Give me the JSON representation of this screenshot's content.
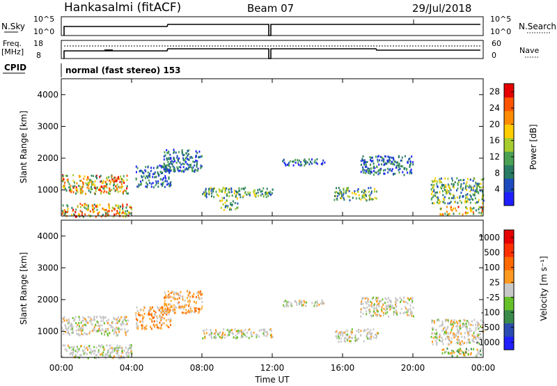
{
  "header": {
    "station": "Hankasalmi (fitACF)",
    "beam": "Beam 07",
    "date": "29/Jul/2018"
  },
  "top_panels": {
    "nsky_label": "N.Sky",
    "nsky_ticks": [
      "10^5",
      "10^0"
    ],
    "nsearch_label": "N.Search",
    "nsearch_ticks": [
      "10^5",
      "10^0"
    ],
    "freq_label": "Freq.",
    "freq_unit": "[MHz]",
    "freq_ticks": [
      "18",
      "8"
    ],
    "nave_label": "Nave",
    "nave_ticks": [
      "60",
      "0"
    ],
    "cpid_label": "CPID",
    "cpid_value": "normal (fast stereo) 153"
  },
  "chart_data": [
    {
      "type": "heatmap",
      "ylabel": "Slant Range [km]",
      "yticks": [
        "4000",
        "3000",
        "2000",
        "1000"
      ],
      "ylim": [
        180,
        4500
      ],
      "xlim": [
        0,
        24
      ],
      "colorbar_label": "Power [dB]",
      "colorbar_ticks": [
        "28",
        "24",
        "20",
        "16",
        "12",
        "8",
        "4"
      ],
      "colorbar_range": [
        0,
        30
      ],
      "colors": [
        "#1f1fff",
        "#1d4bbf",
        "#2a7b63",
        "#4aa053",
        "#a6cc2e",
        "#ffcc00",
        "#ff8c00",
        "#ff5500",
        "#e60000"
      ],
      "echo_regions": [
        {
          "t": [
            0.0,
            3.8
          ],
          "r": [
            900,
            1500
          ],
          "level": "high"
        },
        {
          "t": [
            0.0,
            4.0
          ],
          "r": [
            180,
            600
          ],
          "level": "high"
        },
        {
          "t": [
            4.2,
            6.2
          ],
          "r": [
            1100,
            1800
          ],
          "level": "low"
        },
        {
          "t": [
            5.8,
            8.0
          ],
          "r": [
            1600,
            2300
          ],
          "level": "low"
        },
        {
          "t": [
            8.0,
            12.0
          ],
          "r": [
            800,
            1100
          ],
          "level": "mid"
        },
        {
          "t": [
            9.0,
            10.0
          ],
          "r": [
            400,
            800
          ],
          "level": "mid"
        },
        {
          "t": [
            12.5,
            15.0
          ],
          "r": [
            1800,
            2000
          ],
          "level": "low"
        },
        {
          "t": [
            15.5,
            18.0
          ],
          "r": [
            700,
            1100
          ],
          "level": "mid"
        },
        {
          "t": [
            17.0,
            20.0
          ],
          "r": [
            1500,
            2100
          ],
          "level": "low"
        },
        {
          "t": [
            21.0,
            24.0
          ],
          "r": [
            600,
            1400
          ],
          "level": "mid"
        },
        {
          "t": [
            21.5,
            24.0
          ],
          "r": [
            250,
            500
          ],
          "level": "high"
        }
      ]
    },
    {
      "type": "heatmap",
      "ylabel": "Slant Range [km]",
      "yticks": [
        "4000",
        "3000",
        "2000",
        "1000"
      ],
      "ylim": [
        180,
        4500
      ],
      "xlim": [
        0,
        24
      ],
      "xticks": [
        "00:00",
        "04:00",
        "08:00",
        "12:00",
        "16:00",
        "20:00",
        "00:00"
      ],
      "xlabel": "Time UT",
      "colorbar_label": "Velocity [m s⁻¹]",
      "colorbar_ticks": [
        "1000",
        "500",
        "100",
        "25",
        "-25",
        "-100",
        "-500",
        "-1000"
      ],
      "colors": [
        "#1f1fff",
        "#2a4bb0",
        "#3a8a4a",
        "#66c02a",
        "#c8c8c8",
        "#ff9a20",
        "#ff6a00",
        "#ff3000",
        "#e60000"
      ],
      "echo_regions": [
        {
          "t": [
            0.0,
            3.8
          ],
          "r": [
            900,
            1500
          ],
          "level": "ground"
        },
        {
          "t": [
            0.0,
            4.0
          ],
          "r": [
            180,
            600
          ],
          "level": "ground"
        },
        {
          "t": [
            4.2,
            6.2
          ],
          "r": [
            1100,
            1800
          ],
          "level": "neg"
        },
        {
          "t": [
            5.8,
            8.0
          ],
          "r": [
            1600,
            2300
          ],
          "level": "neg"
        },
        {
          "t": [
            8.0,
            12.0
          ],
          "r": [
            800,
            1100
          ],
          "level": "ground"
        },
        {
          "t": [
            12.5,
            15.0
          ],
          "r": [
            1800,
            2000
          ],
          "level": "ground"
        },
        {
          "t": [
            15.5,
            18.0
          ],
          "r": [
            700,
            1100
          ],
          "level": "ground"
        },
        {
          "t": [
            17.0,
            20.0
          ],
          "r": [
            1500,
            2100
          ],
          "level": "ground"
        },
        {
          "t": [
            21.0,
            24.0
          ],
          "r": [
            600,
            1400
          ],
          "level": "ground"
        },
        {
          "t": [
            21.5,
            24.0
          ],
          "r": [
            250,
            500
          ],
          "level": "pos"
        }
      ]
    }
  ],
  "time_axis_label": "Time UT"
}
